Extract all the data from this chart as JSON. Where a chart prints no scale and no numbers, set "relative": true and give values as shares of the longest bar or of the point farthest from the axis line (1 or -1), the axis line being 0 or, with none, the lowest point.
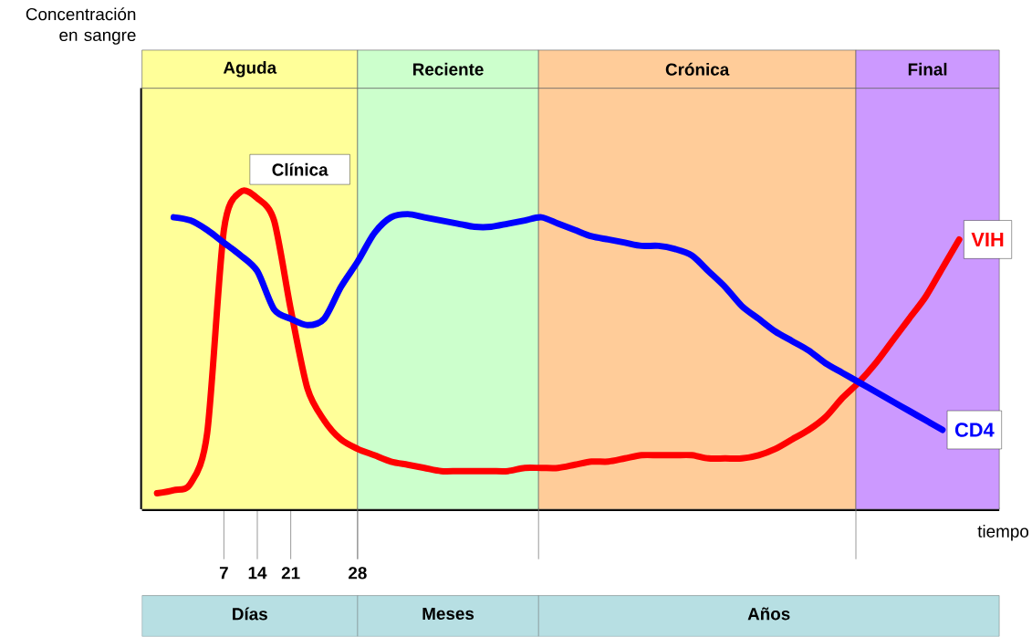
{
  "chart_data": {
    "type": "line",
    "relative": true,
    "xlabel": "tiempo",
    "categories": [
      null,
      null,
      null,
      null,
      "7",
      null,
      "14",
      null,
      "21",
      null,
      null,
      null,
      "28",
      null,
      null,
      null,
      null,
      null,
      null,
      null,
      null,
      null,
      null,
      null,
      null,
      null,
      null,
      null,
      null,
      null,
      null,
      null,
      null,
      null,
      null,
      null,
      null,
      null,
      null,
      null,
      null,
      null,
      null,
      null,
      null,
      null,
      null,
      null,
      null,
      null,
      null
    ],
    "series": [
      {
        "name": "VIH",
        "color": "#ff0000",
        "values": [
          0.05,
          0.06,
          0.08,
          0.24,
          0.88,
          1.0,
          0.98,
          0.91,
          0.63,
          0.38,
          0.28,
          0.22,
          0.19,
          0.17,
          0.15,
          0.14,
          0.13,
          0.12,
          0.12,
          0.12,
          0.12,
          0.12,
          0.13,
          0.13,
          0.13,
          0.14,
          0.15,
          0.15,
          0.16,
          0.17,
          0.17,
          0.17,
          0.17,
          0.16,
          0.16,
          0.16,
          0.17,
          0.19,
          0.22,
          0.25,
          0.29,
          0.35,
          0.4,
          0.46,
          0.53,
          0.6,
          0.67,
          0.76,
          0.85,
          null,
          null
        ]
      },
      {
        "name": "CD4",
        "color": "#0000ff",
        "values": [
          null,
          0.92,
          0.91,
          0.88,
          0.84,
          0.8,
          0.75,
          0.63,
          0.6,
          0.58,
          0.6,
          0.7,
          0.78,
          0.87,
          0.92,
          0.93,
          0.92,
          0.91,
          0.9,
          0.89,
          0.89,
          0.9,
          0.91,
          0.92,
          0.9,
          0.88,
          0.86,
          0.85,
          0.84,
          0.83,
          0.83,
          0.82,
          0.8,
          0.75,
          0.7,
          0.64,
          0.6,
          0.56,
          0.53,
          0.5,
          0.46,
          0.43,
          0.4,
          0.37,
          0.34,
          0.31,
          0.28,
          0.25,
          null,
          null,
          null
        ]
      }
    ],
    "annotations": [
      "Concentración en sangre",
      "Aguda",
      "Reciente",
      "Crónica",
      "Final",
      "Clínica",
      "Días",
      "Meses",
      "Años"
    ],
    "marker": "none",
    "line_style": "solid"
  }
}
